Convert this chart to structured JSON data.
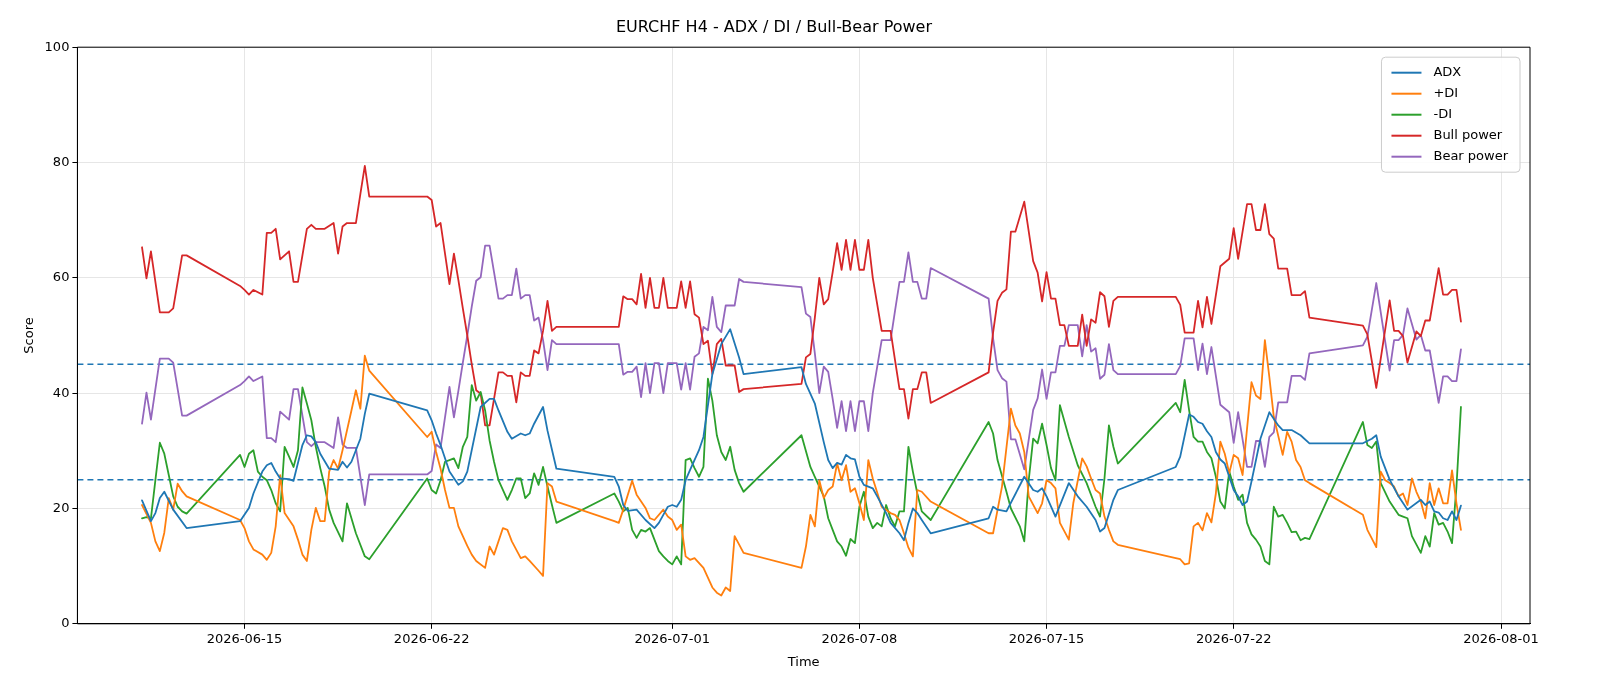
{
  "chart_data": {
    "type": "line",
    "title": "EURCHF H4 - ADX / DI / Bull-Bear Power",
    "xlabel": "Time",
    "ylabel": "Score",
    "xlim": [
      "2026-06-08T18:00",
      "2026-08-02T02:00"
    ],
    "xticks": [
      "2026-06-15",
      "2026-06-22",
      "2026-07-01",
      "2026-07-08",
      "2026-07-15",
      "2026-07-22",
      "2026-08-01"
    ],
    "ylim": [
      0,
      100
    ],
    "yticks": [
      0,
      20,
      40,
      60,
      80,
      100
    ],
    "grid": true,
    "legend": "top right",
    "ref_lines": [
      {
        "axis": "y",
        "value": 25,
        "color": "#1f77b4",
        "line_style": "dashed"
      },
      {
        "axis": "y",
        "value": 45,
        "color": "#1f77b4",
        "line_style": "dashed"
      }
    ],
    "x": [
      "2026-06-11T04:00",
      "2026-06-11T08:00",
      "2026-06-11T12:00",
      "2026-06-11T20:00",
      "2026-06-12T04:00",
      "2026-06-12T08:00",
      "2026-06-12T16:00",
      "2026-06-12T20:00",
      "2026-06-14T20:00",
      "2026-06-15T00:00",
      "2026-06-15T04:00",
      "2026-06-15T08:00",
      "2026-06-15T16:00",
      "2026-06-15T20:00",
      "2026-06-16T00:00",
      "2026-06-16T04:00",
      "2026-06-16T08:00",
      "2026-06-16T16:00",
      "2026-06-16T20:00",
      "2026-06-17T00:00",
      "2026-06-17T08:00",
      "2026-06-17T12:00",
      "2026-06-17T16:00",
      "2026-06-18T00:00",
      "2026-06-18T08:00",
      "2026-06-18T12:00",
      "2026-06-18T16:00",
      "2026-06-18T20:00",
      "2026-06-19T04:00",
      "2026-06-19T08:00",
      "2026-06-19T12:00",
      "2026-06-19T16:00",
      "2026-06-21T20:00",
      "2026-06-22T00:00",
      "2026-06-22T04:00",
      "2026-06-22T08:00",
      "2026-06-22T16:00",
      "2026-06-22T20:00",
      "2026-06-23T00:00",
      "2026-06-23T04:00",
      "2026-06-23T08:00",
      "2026-06-23T12:00",
      "2026-06-23T16:00",
      "2026-06-23T20:00",
      "2026-06-24T00:00",
      "2026-06-24T04:00",
      "2026-06-24T08:00",
      "2026-06-24T12:00",
      "2026-06-24T16:00",
      "2026-06-24T20:00",
      "2026-06-25T00:00",
      "2026-06-25T04:00",
      "2026-06-25T08:00",
      "2026-06-25T12:00",
      "2026-06-25T16:00",
      "2026-06-25T20:00",
      "2026-06-26T00:00",
      "2026-06-26T04:00",
      "2026-06-26T08:00",
      "2026-06-26T12:00",
      "2026-06-26T16:00",
      "2026-06-28T20:00",
      "2026-06-29T00:00",
      "2026-06-29T04:00",
      "2026-06-29T08:00",
      "2026-06-29T12:00",
      "2026-06-29T16:00",
      "2026-06-29T20:00",
      "2026-06-30T00:00",
      "2026-06-30T04:00",
      "2026-06-30T08:00",
      "2026-06-30T12:00",
      "2026-06-30T16:00",
      "2026-06-30T20:00",
      "2026-07-01T04:00",
      "2026-07-01T08:00",
      "2026-07-01T12:00",
      "2026-07-01T16:00",
      "2026-07-01T20:00",
      "2026-07-02T00:00",
      "2026-07-02T04:00",
      "2026-07-02T08:00",
      "2026-07-02T12:00",
      "2026-07-02T16:00",
      "2026-07-02T20:00",
      "2026-07-03T00:00",
      "2026-07-03T08:00",
      "2026-07-03T12:00",
      "2026-07-03T16:00",
      "2026-07-05T20:00",
      "2026-07-06T00:00",
      "2026-07-06T04:00",
      "2026-07-06T08:00",
      "2026-07-06T12:00",
      "2026-07-06T16:00",
      "2026-07-06T20:00",
      "2026-07-07T00:00",
      "2026-07-07T04:00",
      "2026-07-07T08:00",
      "2026-07-07T12:00",
      "2026-07-07T16:00",
      "2026-07-07T20:00",
      "2026-07-08T00:00",
      "2026-07-08T04:00",
      "2026-07-08T08:00",
      "2026-07-08T12:00",
      "2026-07-08T16:00",
      "2026-07-08T20:00",
      "2026-07-09T04:00",
      "2026-07-09T08:00",
      "2026-07-09T12:00",
      "2026-07-09T16:00",
      "2026-07-09T20:00",
      "2026-07-10T00:00",
      "2026-07-10T04:00",
      "2026-07-10T08:00",
      "2026-07-10T12:00",
      "2026-07-10T16:00",
      "2026-07-12T20:00",
      "2026-07-13T00:00",
      "2026-07-13T04:00",
      "2026-07-13T08:00",
      "2026-07-13T12:00",
      "2026-07-13T16:00",
      "2026-07-13T20:00",
      "2026-07-14T04:00",
      "2026-07-14T12:00",
      "2026-07-14T16:00",
      "2026-07-14T20:00",
      "2026-07-15T00:00",
      "2026-07-15T04:00",
      "2026-07-15T08:00",
      "2026-07-15T12:00",
      "2026-07-15T16:00",
      "2026-07-15T20:00",
      "2026-07-16T04:00",
      "2026-07-16T08:00",
      "2026-07-16T12:00",
      "2026-07-16T16:00",
      "2026-07-16T20:00",
      "2026-07-17T00:00",
      "2026-07-17T04:00",
      "2026-07-17T08:00",
      "2026-07-17T12:00",
      "2026-07-17T16:00",
      "2026-07-19T20:00",
      "2026-07-20T00:00",
      "2026-07-20T04:00",
      "2026-07-20T12:00",
      "2026-07-20T16:00",
      "2026-07-20T20:00",
      "2026-07-21T00:00",
      "2026-07-21T04:00",
      "2026-07-21T12:00",
      "2026-07-21T20:00",
      "2026-07-22T00:00",
      "2026-07-22T04:00",
      "2026-07-22T12:00",
      "2026-07-22T16:00",
      "2026-07-22T20:00",
      "2026-07-23T00:00",
      "2026-07-23T04:00",
      "2026-07-23T08:00",
      "2026-07-23T12:00",
      "2026-07-23T16:00",
      "2026-07-24T00:00",
      "2026-07-24T04:00",
      "2026-07-24T12:00",
      "2026-07-24T16:00",
      "2026-07-24T20:00",
      "2026-07-26T20:00",
      "2026-07-27T00:00",
      "2026-07-27T08:00",
      "2026-07-27T20:00",
      "2026-07-28T00:00",
      "2026-07-28T04:00",
      "2026-07-28T08:00",
      "2026-07-28T12:00",
      "2026-07-28T20:00",
      "2026-07-29T00:00",
      "2026-07-29T04:00",
      "2026-07-29T08:00",
      "2026-07-29T16:00",
      "2026-07-29T20:00",
      "2026-07-30T00:00",
      "2026-07-30T04:00",
      "2026-07-30T08:00",
      "2026-07-30T12:00"
    ],
    "series": [
      {
        "name": "ADX",
        "color": "#1f77b4",
        "x": [
          "2026-06-11T04:00",
          "2026-06-11T12:00",
          "2026-06-11T16:00",
          "2026-06-11T20:00",
          "2026-06-12T00:00",
          "2026-06-12T08:00",
          "2026-06-12T20:00",
          "2026-06-14T20:00",
          "2026-06-15T04:00",
          "2026-06-15T08:00",
          "2026-06-15T16:00",
          "2026-06-15T20:00",
          "2026-06-16T00:00",
          "2026-06-16T04:00",
          "2026-06-16T08:00",
          "2026-06-16T16:00",
          "2026-06-16T20:00",
          "2026-06-17T04:00",
          "2026-06-17T08:00",
          "2026-06-17T12:00",
          "2026-06-17T16:00",
          "2026-06-17T20:00",
          "2026-06-18T04:00",
          "2026-06-18T12:00",
          "2026-06-18T16:00",
          "2026-06-18T20:00",
          "2026-06-19T00:00",
          "2026-06-19T04:00",
          "2026-06-19T08:00",
          "2026-06-19T12:00",
          "2026-06-19T16:00",
          "2026-06-21T20:00",
          "2026-06-22T00:00",
          "2026-06-22T04:00",
          "2026-06-22T08:00",
          "2026-06-22T16:00",
          "2026-06-23T00:00",
          "2026-06-23T04:00",
          "2026-06-23T08:00",
          "2026-06-23T20:00",
          "2026-06-24T04:00",
          "2026-06-24T08:00",
          "2026-06-24T12:00",
          "2026-06-24T20:00",
          "2026-06-25T00:00",
          "2026-06-25T08:00",
          "2026-06-25T12:00",
          "2026-06-25T16:00",
          "2026-06-25T20:00",
          "2026-06-26T04:00",
          "2026-06-26T08:00",
          "2026-06-26T16:00",
          "2026-06-28T20:00",
          "2026-06-29T00:00",
          "2026-06-29T04:00",
          "2026-06-29T08:00",
          "2026-06-29T16:00",
          "2026-06-30T00:00",
          "2026-06-30T08:00",
          "2026-06-30T12:00",
          "2026-06-30T20:00",
          "2026-07-01T00:00",
          "2026-07-01T04:00",
          "2026-07-01T08:00",
          "2026-07-01T12:00",
          "2026-07-01T16:00",
          "2026-07-02T00:00",
          "2026-07-02T04:00",
          "2026-07-02T12:00",
          "2026-07-02T20:00",
          "2026-07-03T04:00",
          "2026-07-03T12:00",
          "2026-07-03T16:00",
          "2026-07-05T20:00",
          "2026-07-06T00:00",
          "2026-07-06T08:00",
          "2026-07-06T16:00",
          "2026-07-06T20:00",
          "2026-07-07T00:00",
          "2026-07-07T04:00",
          "2026-07-07T08:00",
          "2026-07-07T12:00",
          "2026-07-07T16:00",
          "2026-07-07T20:00",
          "2026-07-08T00:00",
          "2026-07-08T04:00",
          "2026-07-08T12:00",
          "2026-07-08T16:00",
          "2026-07-09T00:00",
          "2026-07-09T04:00",
          "2026-07-09T12:00",
          "2026-07-09T16:00",
          "2026-07-09T20:00",
          "2026-07-10T00:00",
          "2026-07-10T04:00",
          "2026-07-10T08:00",
          "2026-07-10T16:00",
          "2026-07-12T20:00",
          "2026-07-13T00:00",
          "2026-07-13T04:00",
          "2026-07-13T12:00",
          "2026-07-14T04:00",
          "2026-07-14T12:00",
          "2026-07-14T16:00",
          "2026-07-14T20:00",
          "2026-07-15T00:00",
          "2026-07-15T08:00",
          "2026-07-15T20:00",
          "2026-07-16T04:00",
          "2026-07-16T12:00",
          "2026-07-16T20:00",
          "2026-07-17T00:00",
          "2026-07-17T04:00",
          "2026-07-17T12:00",
          "2026-07-17T16:00",
          "2026-07-19T20:00",
          "2026-07-20T00:00",
          "2026-07-20T08:00",
          "2026-07-20T12:00",
          "2026-07-20T16:00",
          "2026-07-20T20:00",
          "2026-07-21T00:00",
          "2026-07-21T04:00",
          "2026-07-21T08:00",
          "2026-07-21T12:00",
          "2026-07-21T16:00",
          "2026-07-21T20:00",
          "2026-07-22T00:00",
          "2026-07-22T04:00",
          "2026-07-22T08:00",
          "2026-07-22T12:00",
          "2026-07-22T16:00",
          "2026-07-23T00:00",
          "2026-07-23T08:00",
          "2026-07-23T16:00",
          "2026-07-23T20:00",
          "2026-07-24T04:00",
          "2026-07-24T12:00",
          "2026-07-24T20:00",
          "2026-07-26T20:00",
          "2026-07-27T04:00",
          "2026-07-27T08:00",
          "2026-07-27T12:00",
          "2026-07-27T20:00",
          "2026-07-28T04:00",
          "2026-07-28T12:00",
          "2026-07-29T00:00",
          "2026-07-29T04:00",
          "2026-07-29T08:00",
          "2026-07-29T12:00",
          "2026-07-29T16:00",
          "2026-07-29T20:00",
          "2026-07-30T00:00",
          "2026-07-30T04:00",
          "2026-07-30T08:00",
          "2026-07-30T12:00"
        ],
        "values": [
          21.4,
          17.8,
          19.2,
          21.8,
          22.9,
          19.8,
          16.6,
          17.8,
          20.1,
          22.6,
          26.4,
          27.5,
          27.9,
          26.4,
          25.2,
          25.1,
          24.8,
          31,
          32.7,
          32.5,
          31.5,
          29.5,
          26.9,
          26.7,
          28.1,
          27.1,
          28.1,
          30.1,
          32.1,
          36.4,
          39.9,
          37,
          35.3,
          33,
          31,
          26.4,
          24.1,
          24.7,
          26.4,
          37.6,
          39,
          39,
          37,
          33.3,
          32.1,
          33,
          32.7,
          33,
          34.7,
          37.6,
          33.5,
          26.9,
          25.5,
          23.8,
          20.6,
          19.6,
          19.8,
          18,
          16.6,
          17.5,
          20.3,
          20.6,
          20.3,
          21.5,
          24.9,
          26.7,
          30.1,
          32.4,
          43.3,
          48.5,
          51.1,
          46.2,
          43.3,
          44.5,
          41.6,
          38.2,
          31.5,
          28.4,
          27,
          27.9,
          27.6,
          29.3,
          28.7,
          28.5,
          25.5,
          24.1,
          23.5,
          22.1,
          19.2,
          17.5,
          15.7,
          14.5,
          17.5,
          20,
          19.2,
          18,
          15.7,
          18.3,
          20.3,
          19.8,
          19.5,
          25.5,
          23.2,
          22.9,
          23.5,
          22.1,
          18.6,
          24.4,
          22.1,
          20.3,
          18,
          16,
          16.6,
          21.5,
          23.2,
          27.2,
          29,
          36.3,
          35.9,
          35,
          34.7,
          33.4,
          32.4,
          29.8,
          28.5,
          27.8,
          25.5,
          23.2,
          22.1,
          20.6,
          21.2,
          24.7,
          32.1,
          36.7,
          34.4,
          33.6,
          33.6,
          32.7,
          31.3,
          31.3,
          32.1,
          32.7,
          29,
          25,
          22.1,
          19.8,
          21.5,
          20.6,
          21.2,
          19.5,
          19.3,
          18.3,
          18,
          19.5,
          18,
          20.5
        ]
      },
      {
        "name": "+DI",
        "color": "#ff7f0e",
        "x": [
          "2026-06-11T04:00",
          "2026-06-11T12:00",
          "2026-06-11T16:00",
          "2026-06-11T20:00",
          "2026-06-12T00:00",
          "2026-06-12T04:00",
          "2026-06-12T08:00",
          "2026-06-12T12:00",
          "2026-06-12T16:00",
          "2026-06-12T20:00",
          "2026-06-14T20:00",
          "2026-06-15T00:00",
          "2026-06-15T04:00",
          "2026-06-15T08:00",
          "2026-06-15T16:00",
          "2026-06-15T20:00",
          "2026-06-16T00:00",
          "2026-06-16T04:00",
          "2026-06-16T08:00",
          "2026-06-16T12:00",
          "2026-06-16T20:00",
          "2026-06-17T00:00",
          "2026-06-17T04:00",
          "2026-06-17T08:00",
          "2026-06-17T12:00",
          "2026-06-17T16:00",
          "2026-06-17T20:00",
          "2026-06-18T00:00",
          "2026-06-18T04:00",
          "2026-06-18T08:00",
          "2026-06-18T12:00",
          "2026-06-18T16:00",
          "2026-06-19T00:00",
          "2026-06-19T04:00",
          "2026-06-19T08:00",
          "2026-06-19T12:00",
          "2026-06-19T16:00",
          "2026-06-21T20:00",
          "2026-06-22T00:00",
          "2026-06-22T04:00",
          "2026-06-22T08:00",
          "2026-06-22T12:00",
          "2026-06-22T16:00",
          "2026-06-22T20:00",
          "2026-06-23T00:00",
          "2026-06-23T08:00",
          "2026-06-23T12:00",
          "2026-06-23T16:00",
          "2026-06-24T00:00",
          "2026-06-24T04:00",
          "2026-06-24T08:00",
          "2026-06-24T16:00",
          "2026-06-24T20:00",
          "2026-06-25T00:00",
          "2026-06-25T08:00",
          "2026-06-25T12:00",
          "2026-06-25T16:00",
          "2026-06-26T00:00",
          "2026-06-26T04:00",
          "2026-06-26T08:00",
          "2026-06-26T12:00",
          "2026-06-26T16:00",
          "2026-06-28T20:00",
          "2026-06-29T00:00",
          "2026-06-29T04:00",
          "2026-06-29T12:00",
          "2026-06-29T16:00",
          "2026-06-30T00:00",
          "2026-06-30T04:00",
          "2026-06-30T08:00",
          "2026-06-30T16:00",
          "2026-06-30T20:00",
          "2026-07-01T00:00",
          "2026-07-01T04:00",
          "2026-07-01T08:00",
          "2026-07-01T12:00",
          "2026-07-01T16:00",
          "2026-07-01T20:00",
          "2026-07-02T04:00",
          "2026-07-02T12:00",
          "2026-07-02T16:00",
          "2026-07-02T20:00",
          "2026-07-03T00:00",
          "2026-07-03T04:00",
          "2026-07-03T08:00",
          "2026-07-03T16:00",
          "2026-07-05T20:00",
          "2026-07-06T00:00",
          "2026-07-06T04:00",
          "2026-07-06T08:00",
          "2026-07-06T12:00",
          "2026-07-06T16:00",
          "2026-07-06T20:00",
          "2026-07-07T00:00",
          "2026-07-07T04:00",
          "2026-07-07T08:00",
          "2026-07-07T12:00",
          "2026-07-07T16:00",
          "2026-07-07T20:00",
          "2026-07-08T00:00",
          "2026-07-08T04:00",
          "2026-07-08T08:00",
          "2026-07-08T12:00",
          "2026-07-08T20:00",
          "2026-07-09T04:00",
          "2026-07-09T08:00",
          "2026-07-09T12:00",
          "2026-07-09T16:00",
          "2026-07-09T20:00",
          "2026-07-10T00:00",
          "2026-07-10T04:00",
          "2026-07-10T08:00",
          "2026-07-10T16:00",
          "2026-07-12T20:00",
          "2026-07-13T00:00",
          "2026-07-13T08:00",
          "2026-07-13T16:00",
          "2026-07-13T20:00",
          "2026-07-14T00:00",
          "2026-07-14T04:00",
          "2026-07-14T08:00",
          "2026-07-14T16:00",
          "2026-07-14T20:00",
          "2026-07-15T00:00",
          "2026-07-15T04:00",
          "2026-07-15T08:00",
          "2026-07-15T12:00",
          "2026-07-15T20:00",
          "2026-07-16T00:00",
          "2026-07-16T08:00",
          "2026-07-16T12:00",
          "2026-07-16T16:00",
          "2026-07-16T20:00",
          "2026-07-17T00:00",
          "2026-07-17T04:00",
          "2026-07-17T08:00",
          "2026-07-17T12:00",
          "2026-07-17T16:00",
          "2026-07-19T20:00",
          "2026-07-20T00:00",
          "2026-07-20T04:00",
          "2026-07-20T08:00",
          "2026-07-20T12:00",
          "2026-07-20T16:00",
          "2026-07-20T20:00",
          "2026-07-21T00:00",
          "2026-07-21T04:00",
          "2026-07-21T08:00",
          "2026-07-21T12:00",
          "2026-07-21T16:00",
          "2026-07-21T20:00",
          "2026-07-22T00:00",
          "2026-07-22T04:00",
          "2026-07-22T08:00",
          "2026-07-22T16:00",
          "2026-07-22T20:00",
          "2026-07-23T00:00",
          "2026-07-23T04:00",
          "2026-07-23T08:00",
          "2026-07-23T12:00",
          "2026-07-23T20:00",
          "2026-07-24T00:00",
          "2026-07-24T04:00",
          "2026-07-24T08:00",
          "2026-07-24T12:00",
          "2026-07-24T16:00",
          "2026-07-24T20:00",
          "2026-07-26T20:00",
          "2026-07-27T00:00",
          "2026-07-27T08:00",
          "2026-07-27T12:00",
          "2026-07-27T16:00",
          "2026-07-27T20:00",
          "2026-07-28T00:00",
          "2026-07-28T04:00",
          "2026-07-28T08:00",
          "2026-07-28T12:00",
          "2026-07-28T16:00",
          "2026-07-28T20:00",
          "2026-07-29T00:00",
          "2026-07-29T04:00",
          "2026-07-29T08:00",
          "2026-07-29T12:00",
          "2026-07-29T16:00",
          "2026-07-29T20:00",
          "2026-07-30T00:00",
          "2026-07-30T04:00",
          "2026-07-30T08:00",
          "2026-07-30T12:00"
        ],
        "values": [
          20.6,
          17.5,
          14.3,
          12.6,
          15.8,
          21.8,
          19.8,
          24.3,
          23,
          22.1,
          18,
          16.6,
          14.3,
          12.9,
          12,
          11.1,
          12.3,
          16.9,
          25.8,
          19.2,
          16.9,
          14.6,
          12,
          10.9,
          16.3,
          20.1,
          17.8,
          17.8,
          26.4,
          28.4,
          26.9,
          30.1,
          37,
          40.5,
          37.3,
          46.5,
          43.9,
          32.4,
          33.3,
          29.8,
          26.9,
          23.2,
          20.1,
          20.1,
          16.9,
          13.5,
          12,
          10.9,
          9.7,
          13.4,
          12,
          16.6,
          16.3,
          14.3,
          11.4,
          11.7,
          10.9,
          9.2,
          8.3,
          24.4,
          23.8,
          21.2,
          17.8,
          17.5,
          19.8,
          24.8,
          22.4,
          20.1,
          18.3,
          18,
          19.8,
          18.6,
          18,
          16.3,
          17.2,
          11.7,
          11.1,
          11.4,
          9.7,
          6.3,
          5.4,
          4.9,
          6.3,
          5.7,
          15.2,
          12.3,
          9.7,
          13.4,
          18.9,
          16.9,
          24.9,
          21.8,
          23.2,
          23.8,
          27.8,
          24.9,
          27.5,
          22.9,
          23.5,
          20.9,
          18,
          28.4,
          25.2,
          20.3,
          19.2,
          18.9,
          18,
          15.7,
          13.2,
          11.7,
          23.2,
          22.9,
          21.2,
          15.7,
          15.7,
          23.8,
          37.3,
          34.4,
          33,
          29.8,
          22.1,
          19.2,
          20.9,
          24.9,
          24.4,
          23.5,
          17.5,
          14.6,
          20.9,
          28.7,
          27.3,
          25.2,
          23.2,
          22.6,
          18.6,
          16.3,
          14.3,
          13.7,
          11.4,
          11.2,
          10.3,
          10.5,
          16.9,
          17.5,
          16.2,
          19.2,
          17.6,
          22.6,
          31.6,
          29.5,
          26.1,
          29.3,
          28.7,
          25.8,
          41.9,
          39.6,
          39,
          49.2,
          42.8,
          35.9,
          29.3,
          33.3,
          31.6,
          28.4,
          27.2,
          24.9,
          24.4,
          18.9,
          16.3,
          13.3,
          26.4,
          24.9,
          24.4,
          23.8,
          22.1,
          22.6,
          20.6,
          25.2,
          22.9,
          21.2,
          18.3,
          24.4,
          20.6,
          23.5,
          20.9,
          20.9,
          26.6,
          20.9,
          16.3
        ]
      },
      {
        "name": "-DI",
        "color": "#2ca02c",
        "x": [
          "2026-06-11T04:00",
          "2026-06-11T08:00",
          "2026-06-11T12:00",
          "2026-06-11T16:00",
          "2026-06-11T20:00",
          "2026-06-12T00:00",
          "2026-06-12T04:00",
          "2026-06-12T08:00",
          "2026-06-12T12:00",
          "2026-06-12T16:00",
          "2026-06-12T20:00",
          "2026-06-14T20:00",
          "2026-06-15T00:00",
          "2026-06-15T04:00",
          "2026-06-15T08:00",
          "2026-06-15T12:00",
          "2026-06-15T16:00",
          "2026-06-15T20:00",
          "2026-06-16T00:00",
          "2026-06-16T04:00",
          "2026-06-16T08:00",
          "2026-06-16T12:00",
          "2026-06-16T16:00",
          "2026-06-16T20:00",
          "2026-06-17T00:00",
          "2026-06-17T04:00",
          "2026-06-17T08:00",
          "2026-06-17T12:00",
          "2026-06-17T16:00",
          "2026-06-17T20:00",
          "2026-06-18T00:00",
          "2026-06-18T04:00",
          "2026-06-18T08:00",
          "2026-06-18T16:00",
          "2026-06-18T20:00",
          "2026-06-19T04:00",
          "2026-06-19T12:00",
          "2026-06-19T16:00",
          "2026-06-21T20:00",
          "2026-06-22T00:00",
          "2026-06-22T04:00",
          "2026-06-22T08:00",
          "2026-06-22T12:00",
          "2026-06-22T16:00",
          "2026-06-22T20:00",
          "2026-06-23T00:00",
          "2026-06-23T04:00",
          "2026-06-23T08:00",
          "2026-06-23T12:00",
          "2026-06-23T16:00",
          "2026-06-23T20:00",
          "2026-06-24T00:00",
          "2026-06-24T04:00",
          "2026-06-24T08:00",
          "2026-06-24T12:00",
          "2026-06-24T20:00",
          "2026-06-25T00:00",
          "2026-06-25T04:00",
          "2026-06-25T08:00",
          "2026-06-25T12:00",
          "2026-06-25T16:00",
          "2026-06-25T20:00",
          "2026-06-26T00:00",
          "2026-06-26T04:00",
          "2026-06-26T08:00",
          "2026-06-26T12:00",
          "2026-06-26T16:00",
          "2026-06-28T20:00",
          "2026-06-29T00:00",
          "2026-06-29T04:00",
          "2026-06-29T08:00",
          "2026-06-29T12:00",
          "2026-06-29T16:00",
          "2026-06-29T20:00",
          "2026-06-30T00:00",
          "2026-06-30T04:00",
          "2026-06-30T08:00",
          "2026-06-30T12:00",
          "2026-06-30T16:00",
          "2026-06-30T20:00",
          "2026-07-01T00:00",
          "2026-07-01T04:00",
          "2026-07-01T08:00",
          "2026-07-01T12:00",
          "2026-07-01T16:00",
          "2026-07-01T20:00",
          "2026-07-02T00:00",
          "2026-07-02T04:00",
          "2026-07-02T08:00",
          "2026-07-02T12:00",
          "2026-07-02T16:00",
          "2026-07-02T20:00",
          "2026-07-03T00:00",
          "2026-07-03T04:00",
          "2026-07-03T08:00",
          "2026-07-03T12:00",
          "2026-07-03T16:00",
          "2026-07-05T20:00",
          "2026-07-06T04:00",
          "2026-07-06T08:00",
          "2026-07-06T12:00",
          "2026-07-06T16:00",
          "2026-07-06T20:00",
          "2026-07-07T00:00",
          "2026-07-07T04:00",
          "2026-07-07T08:00",
          "2026-07-07T12:00",
          "2026-07-07T16:00",
          "2026-07-07T20:00",
          "2026-07-08T00:00",
          "2026-07-08T04:00",
          "2026-07-08T08:00",
          "2026-07-08T12:00",
          "2026-07-08T16:00",
          "2026-07-08T20:00",
          "2026-07-09T00:00",
          "2026-07-09T04:00",
          "2026-07-09T08:00",
          "2026-07-09T12:00",
          "2026-07-09T16:00",
          "2026-07-09T20:00",
          "2026-07-10T00:00",
          "2026-07-10T04:00",
          "2026-07-10T08:00",
          "2026-07-10T16:00",
          "2026-07-12T20:00",
          "2026-07-13T00:00",
          "2026-07-13T04:00",
          "2026-07-13T12:00",
          "2026-07-13T16:00",
          "2026-07-14T00:00",
          "2026-07-14T04:00",
          "2026-07-14T08:00",
          "2026-07-14T12:00",
          "2026-07-14T16:00",
          "2026-07-14T20:00",
          "2026-07-15T00:00",
          "2026-07-15T04:00",
          "2026-07-15T08:00",
          "2026-07-15T12:00",
          "2026-07-15T20:00",
          "2026-07-16T04:00",
          "2026-07-16T12:00",
          "2026-07-16T20:00",
          "2026-07-17T00:00",
          "2026-07-17T04:00",
          "2026-07-17T08:00",
          "2026-07-17T12:00",
          "2026-07-17T16:00",
          "2026-07-19T20:00",
          "2026-07-20T00:00",
          "2026-07-20T04:00",
          "2026-07-20T08:00",
          "2026-07-20T12:00",
          "2026-07-20T16:00",
          "2026-07-20T20:00",
          "2026-07-21T00:00",
          "2026-07-21T04:00",
          "2026-07-21T08:00",
          "2026-07-21T12:00",
          "2026-07-21T16:00",
          "2026-07-21T20:00",
          "2026-07-22T00:00",
          "2026-07-22T04:00",
          "2026-07-22T08:00",
          "2026-07-22T12:00",
          "2026-07-22T16:00",
          "2026-07-22T20:00",
          "2026-07-23T00:00",
          "2026-07-23T04:00",
          "2026-07-23T08:00",
          "2026-07-23T12:00",
          "2026-07-23T16:00",
          "2026-07-23T20:00",
          "2026-07-24T00:00",
          "2026-07-24T04:00",
          "2026-07-24T08:00",
          "2026-07-24T12:00",
          "2026-07-24T16:00",
          "2026-07-24T20:00",
          "2026-07-26T20:00",
          "2026-07-27T00:00",
          "2026-07-27T04:00",
          "2026-07-27T08:00",
          "2026-07-27T12:00",
          "2026-07-27T20:00",
          "2026-07-28T04:00",
          "2026-07-28T08:00",
          "2026-07-28T12:00",
          "2026-07-28T16:00",
          "2026-07-29T00:00",
          "2026-07-29T04:00",
          "2026-07-29T08:00",
          "2026-07-29T12:00",
          "2026-07-29T16:00",
          "2026-07-29T20:00",
          "2026-07-30T00:00",
          "2026-07-30T04:00",
          "2026-07-30T08:00",
          "2026-07-30T12:00"
        ],
        "values": [
          18.3,
          18.5,
          18.3,
          24.9,
          31.4,
          29.5,
          25.8,
          22.1,
          20.3,
          19.5,
          19.1,
          29.3,
          27.2,
          29.5,
          30.1,
          26.4,
          25.5,
          24.9,
          23.2,
          20.9,
          19.5,
          30.7,
          29,
          27.2,
          30.1,
          41,
          38.2,
          35.3,
          30.7,
          27,
          23.8,
          19.8,
          17.5,
          14.3,
          20.9,
          15.7,
          11.7,
          11.2,
          25.2,
          23.2,
          22.6,
          24.9,
          28.1,
          28.4,
          28.7,
          27,
          30.7,
          32.4,
          41.4,
          38.7,
          40.2,
          37,
          31.8,
          28.1,
          24.9,
          21.5,
          23.2,
          25.2,
          25.2,
          21.8,
          22.6,
          26.1,
          24.1,
          27.2,
          23.8,
          20.6,
          17.5,
          22.6,
          21.2,
          19.5,
          20.1,
          16.3,
          14.9,
          16.3,
          16,
          16.6,
          14.6,
          12.6,
          11.7,
          10.9,
          10.3,
          11.7,
          10.3,
          28.4,
          28.7,
          27,
          25.5,
          27.2,
          42.5,
          38.7,
          32.7,
          29.8,
          28.4,
          30.7,
          26.7,
          24.4,
          22.9,
          32.7,
          27.2,
          25.5,
          23.8,
          22.1,
          18.3,
          16.3,
          14.3,
          13.4,
          11.8,
          14.7,
          14,
          20.3,
          22.9,
          18.6,
          16.6,
          17.5,
          16.9,
          20.6,
          18.3,
          16.9,
          19.5,
          19.5,
          30.7,
          26.4,
          22.6,
          19.5,
          18,
          35,
          33,
          28.4,
          22.9,
          20,
          16.9,
          14.3,
          24.9,
          32.1,
          31.3,
          34.7,
          31,
          27,
          24.9,
          37.9,
          32.4,
          27.5,
          24.4,
          20.3,
          18.6,
          25.2,
          34.4,
          30.7,
          27.8,
          38.3,
          36.7,
          42.3,
          37,
          32.4,
          31.6,
          31.6,
          29.8,
          28.7,
          25.5,
          21.2,
          20,
          26.4,
          23.8,
          21.5,
          22.4,
          17.5,
          15.5,
          14.6,
          13.4,
          10.9,
          10.3,
          20.3,
          18.6,
          18.9,
          17.5,
          15.9,
          16,
          14.5,
          14.9,
          14.7,
          35,
          31,
          30.5,
          31.6,
          24.4,
          21.2,
          18.9,
          18.6,
          18.3,
          15.2,
          12.3,
          15.2,
          13.4,
          19.2,
          17.2,
          17.5,
          16,
          14,
          23.8,
          37.6
        ]
      },
      {
        "name": "Bull power",
        "color": "#d62728",
        "values": [
          65.3,
          59.9,
          64.6,
          54.0,
          54.0,
          54.7,
          63.9,
          63.9,
          58.6,
          57.9,
          57.1,
          57.9,
          57.1,
          67.8,
          67.8,
          68.5,
          63.2,
          64.6,
          59.3,
          59.3,
          68.5,
          69.2,
          68.5,
          68.5,
          69.5,
          64.2,
          68.9,
          69.5,
          69.5,
          74.5,
          79.4,
          74.1,
          74.1,
          73.5,
          68.9,
          69.5,
          58.9,
          64.2,
          59.6,
          54.7,
          50,
          45,
          40.5,
          39.9,
          34.4,
          34.4,
          39,
          43.6,
          43.6,
          43,
          43,
          38.4,
          43.6,
          43,
          43,
          47.4,
          46.9,
          50.8,
          56,
          50.8,
          51.5,
          51.5,
          51.5,
          56.8,
          56.3,
          56.3,
          55.4,
          60.7,
          54.8,
          60,
          54.8,
          54.8,
          60,
          54.8,
          54.8,
          59.4,
          54.8,
          59.4,
          53.7,
          53.1,
          48.5,
          49.1,
          43.3,
          48.5,
          49.4,
          44.8,
          44.8,
          40.2,
          40.7,
          41.6,
          46.2,
          46.8,
          53.1,
          60,
          55.4,
          56.3,
          61,
          66,
          61.4,
          66.6,
          61.4,
          66.6,
          61.4,
          61.4,
          66.6,
          60,
          55.4,
          50.8,
          50.8,
          45.7,
          40.7,
          40.7,
          35.6,
          40.7,
          40.7,
          43.6,
          43.6,
          38.3,
          43.6,
          50.5,
          56,
          57.4,
          58,
          68,
          68,
          73.2,
          62.9,
          60.9,
          55.9,
          61,
          56.4,
          56.4,
          51.8,
          51.8,
          48.2,
          48.2,
          53.6,
          48.2,
          52.8,
          52.2,
          57.5,
          56.8,
          51.5,
          56,
          56.7,
          56.7,
          55.3,
          50.5,
          50.5,
          56,
          51.4,
          56.7,
          52,
          62,
          63.3,
          68.6,
          63.3,
          72.8,
          72.8,
          68.3,
          68.3,
          72.8,
          67.6,
          66.8,
          61.6,
          61.6,
          57,
          57,
          57.7,
          53.1,
          51.7,
          50.2,
          40.9,
          56.1,
          50.8,
          50.8,
          49.9,
          45.3,
          50.7,
          49.9,
          52.6,
          52.6,
          61.7,
          57.1,
          57.1,
          57.9,
          57.9,
          52.4
        ]
      },
      {
        "name": "Bear power",
        "color": "#9467bd",
        "values": [
          34.7,
          40.1,
          35.4,
          46.0,
          46.0,
          45.3,
          36.1,
          36.1,
          41.4,
          42.1,
          42.9,
          42.1,
          42.9,
          32.2,
          32.2,
          31.5,
          36.8,
          35.4,
          40.7,
          40.7,
          31.5,
          30.8,
          31.5,
          31.5,
          30.5,
          35.8,
          31.1,
          30.5,
          30.5,
          25.5,
          20.6,
          25.9,
          25.9,
          26.5,
          31.1,
          30.5,
          41.1,
          35.8,
          40.4,
          45.3,
          50,
          55,
          59.5,
          60.1,
          65.6,
          65.6,
          61,
          56.4,
          56.4,
          57,
          57,
          61.6,
          56.4,
          57,
          57,
          52.6,
          53.1,
          49.2,
          44,
          49.2,
          48.5,
          48.5,
          48.5,
          43.2,
          43.7,
          43.7,
          44.6,
          39.3,
          45.2,
          40,
          45.2,
          45.2,
          40,
          45.2,
          45.2,
          40.6,
          45.2,
          40.6,
          46.3,
          46.9,
          51.5,
          50.9,
          56.7,
          51.5,
          50.6,
          55.2,
          55.2,
          59.8,
          59.3,
          58.4,
          53.8,
          53.2,
          46.9,
          40,
          44.6,
          43.7,
          39,
          34,
          38.6,
          33.4,
          38.6,
          33.4,
          38.6,
          38.6,
          33.4,
          40,
          44.6,
          49.2,
          49.2,
          54.3,
          59.3,
          59.3,
          64.4,
          59.3,
          59.3,
          56.4,
          56.4,
          61.7,
          56.4,
          49.5,
          44,
          42.6,
          42,
          32,
          32,
          26.8,
          37.1,
          39.1,
          44.1,
          39,
          43.6,
          43.6,
          48.2,
          48.2,
          51.8,
          51.8,
          46.4,
          51.8,
          47.2,
          47.8,
          42.5,
          43.2,
          48.5,
          44,
          43.3,
          43.3,
          44.7,
          49.5,
          49.5,
          44,
          48.6,
          43.3,
          48,
          38,
          36.7,
          31.4,
          36.7,
          27.2,
          27.2,
          31.7,
          31.7,
          27.2,
          32.4,
          33.2,
          38.4,
          38.4,
          43,
          43,
          42.3,
          46.9,
          48.3,
          49.8,
          59.1,
          43.9,
          49.2,
          49.2,
          50.1,
          54.7,
          49.3,
          50.1,
          47.4,
          47.4,
          38.3,
          42.9,
          42.9,
          42.1,
          42.1,
          47.6
        ]
      }
    ]
  }
}
